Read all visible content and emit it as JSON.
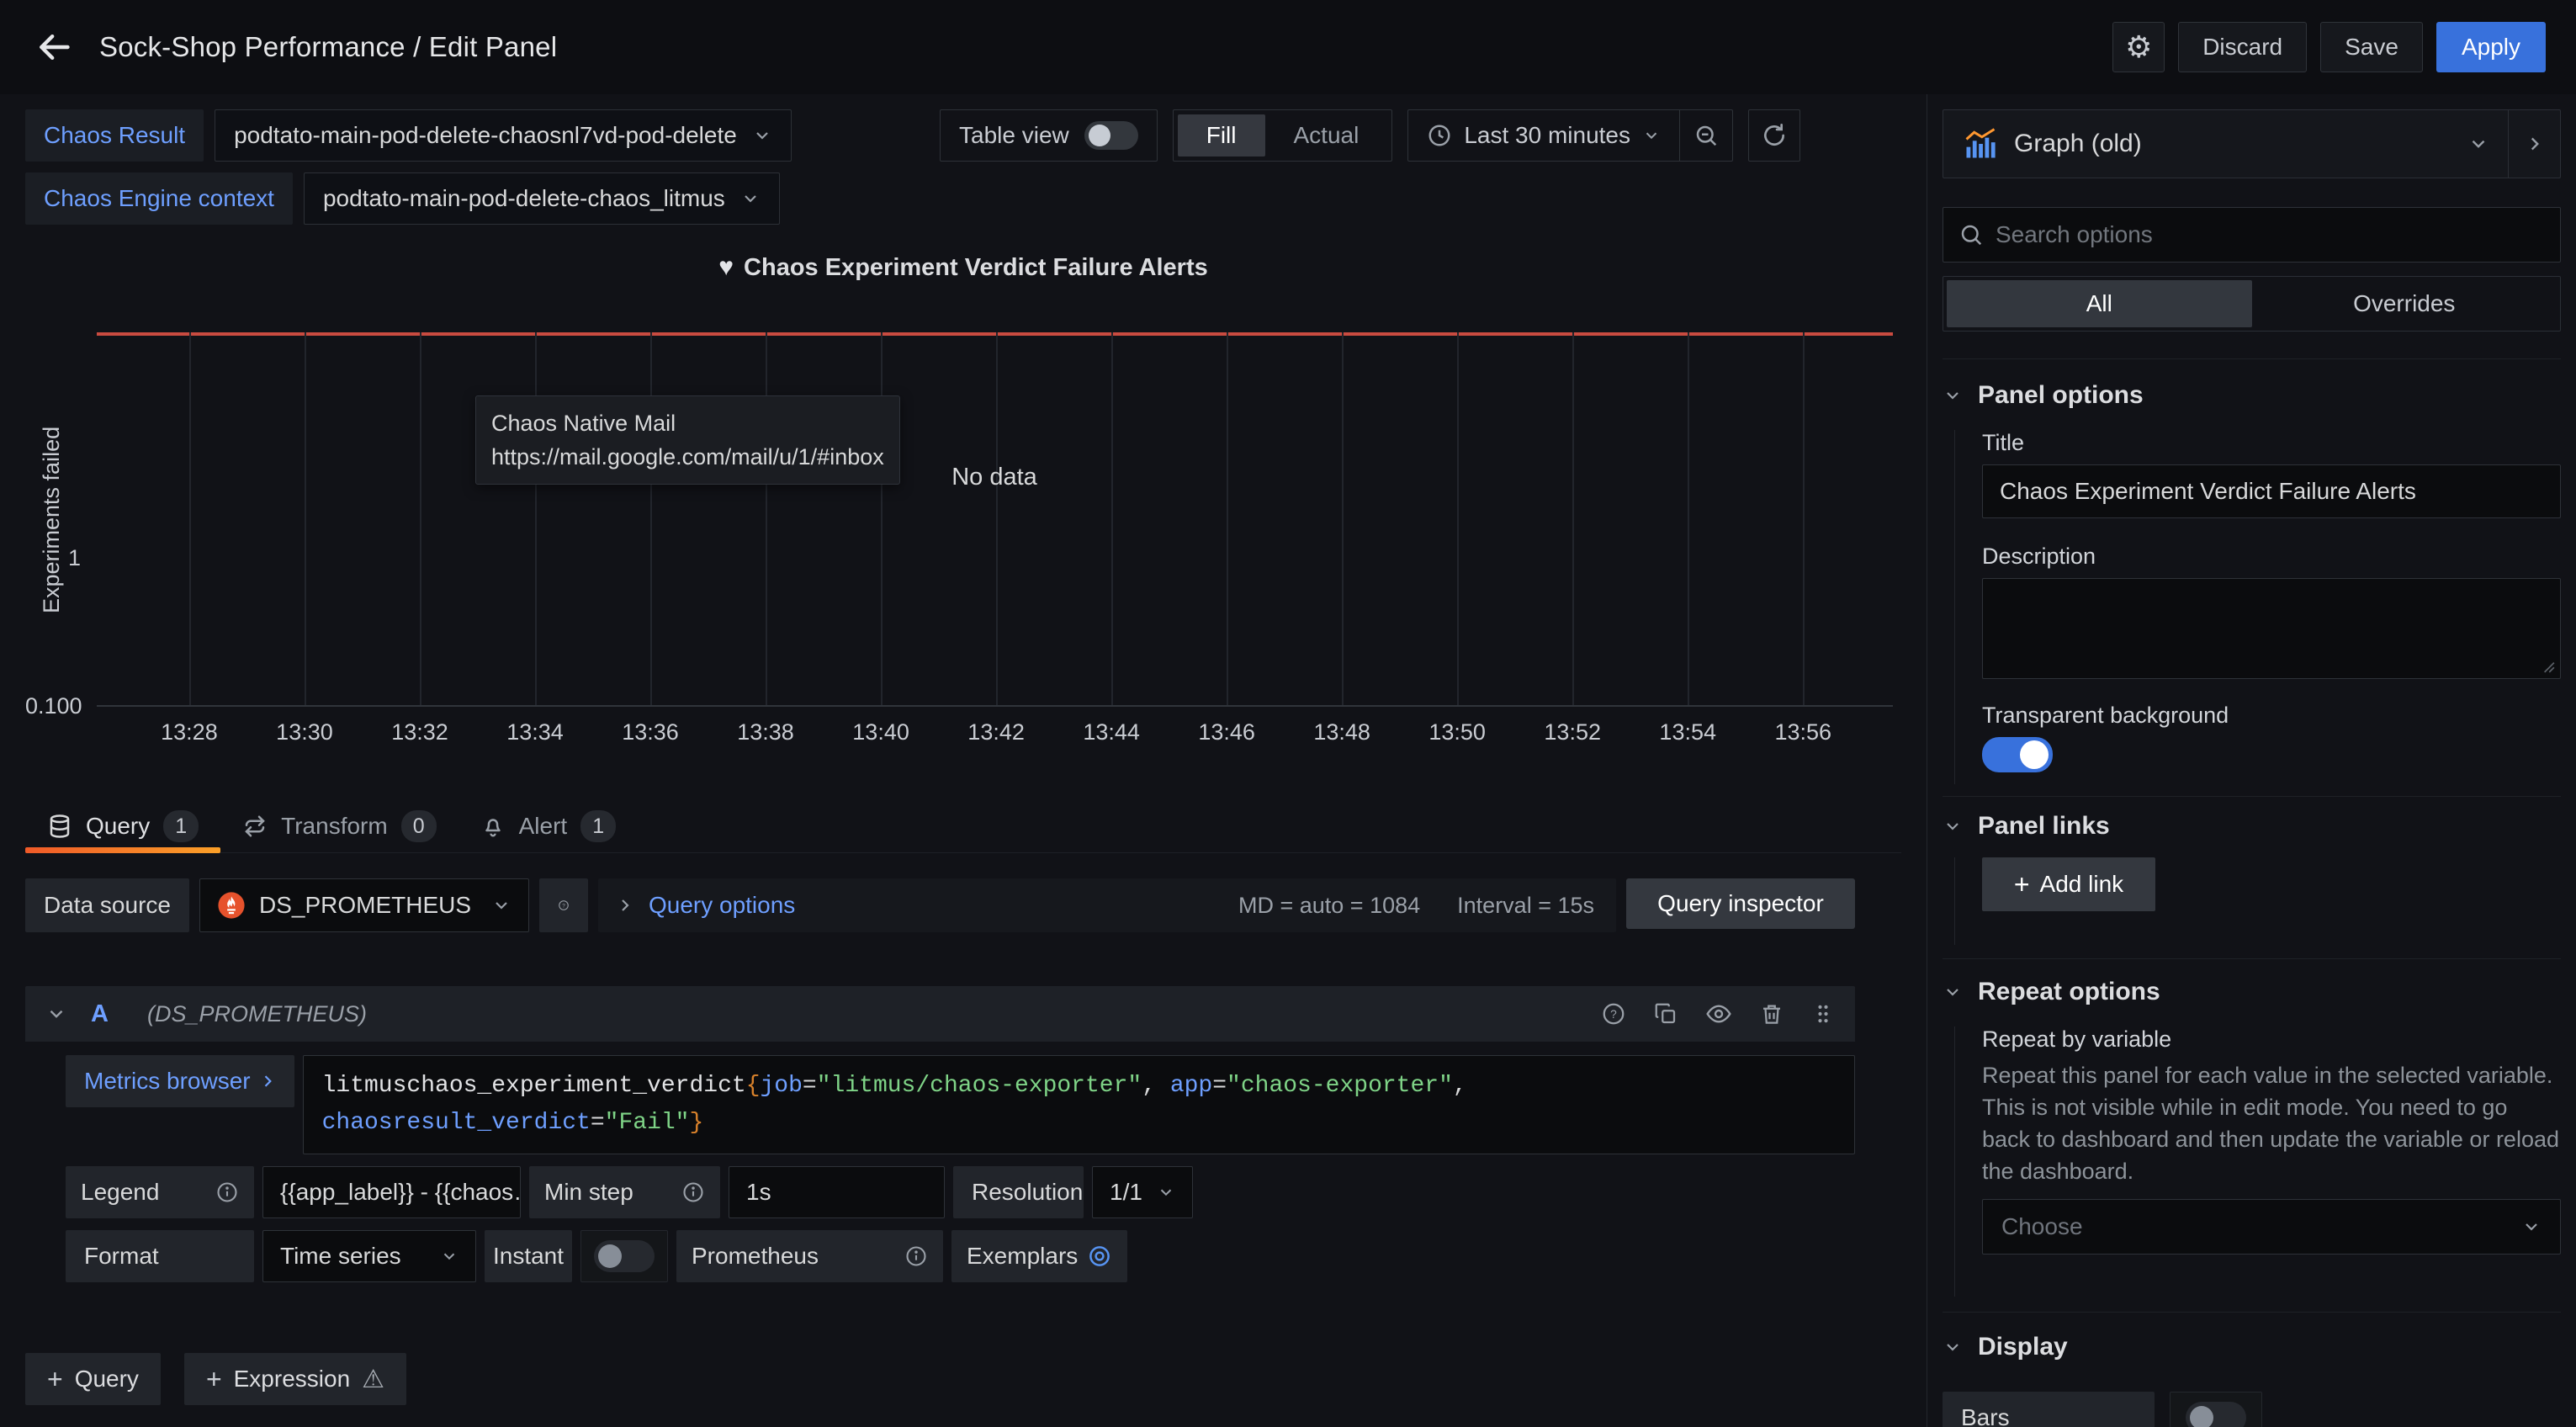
{
  "nav": {
    "title": "Sock-Shop Performance / Edit Panel",
    "discard": "Discard",
    "save": "Save",
    "apply": "Apply"
  },
  "variables": [
    {
      "label": "Chaos Result",
      "value": "podtato-main-pod-delete-chaosnl7vd-pod-delete"
    },
    {
      "label": "Chaos Engine context",
      "value": "podtato-main-pod-delete-chaos_litmus"
    }
  ],
  "view_controls": {
    "table_view": "Table view",
    "fill": "Fill",
    "actual": "Actual",
    "time_range": "Last 30 minutes"
  },
  "chart_data": {
    "type": "line",
    "title": "Chaos Experiment Verdict Failure Alerts",
    "ylabel": "Experiments failed",
    "yscale": "log",
    "ylim": [
      0.1,
      1
    ],
    "y_ticks": [
      "1",
      "0.100"
    ],
    "x_ticks": [
      "13:28",
      "13:30",
      "13:32",
      "13:34",
      "13:36",
      "13:38",
      "13:40",
      "13:42",
      "13:44",
      "13:46",
      "13:48",
      "13:50",
      "13:52",
      "13:54",
      "13:56"
    ],
    "series": [],
    "no_data": "No data",
    "threshold": {
      "y": 1,
      "color": "#c94b40"
    },
    "grid": true,
    "tooltip": {
      "title": "Chaos Native Mail",
      "url": "https://mail.google.com/mail/u/1/#inbox"
    }
  },
  "tabs": [
    {
      "label": "Query",
      "count": "1"
    },
    {
      "label": "Transform",
      "count": "0"
    },
    {
      "label": "Alert",
      "count": "1"
    }
  ],
  "datasource_row": {
    "label": "Data source",
    "name": "DS_PROMETHEUS",
    "query_options": "Query options",
    "max_data_points": "MD = auto = 1084",
    "interval": "Interval = 15s",
    "inspector": "Query inspector"
  },
  "query": {
    "ref_id": "A",
    "datasource": "(DS_PROMETHEUS)",
    "metrics_browser": "Metrics browser",
    "expr_tokens": [
      {
        "text": "litmuschaos_experiment_verdict",
        "type": "metric"
      },
      {
        "text": "{",
        "type": "brace"
      },
      {
        "text": "job",
        "type": "label"
      },
      {
        "text": "=",
        "type": "punct"
      },
      {
        "text": "\"litmus/chaos-exporter\"",
        "type": "string"
      },
      {
        "text": ", ",
        "type": "punct"
      },
      {
        "text": "app",
        "type": "label"
      },
      {
        "text": "=",
        "type": "punct"
      },
      {
        "text": "\"chaos-exporter\"",
        "type": "string"
      },
      {
        "text": ",",
        "type": "punct"
      },
      {
        "type": "break"
      },
      {
        "text": "chaosresult_verdict",
        "type": "label"
      },
      {
        "text": "=",
        "type": "punct"
      },
      {
        "text": "\"Fail\"",
        "type": "string"
      },
      {
        "text": "}",
        "type": "brace"
      }
    ],
    "legend_label": "Legend",
    "legend_value": "{{app_label}} - {{chaos…",
    "min_step_label": "Min step",
    "min_step_value": "1s",
    "resolution_label": "Resolution",
    "resolution_value": "1/1",
    "format_label": "Format",
    "format_value": "Time series",
    "instant_label": "Instant",
    "prometheus_label": "Prometheus",
    "exemplars_label": "Exemplars"
  },
  "editor_actions": {
    "add_query": "Query",
    "add_expression": "Expression"
  },
  "options_pane": {
    "visualization": "Graph (old)",
    "search_placeholder": "Search options",
    "tab_all": "All",
    "tab_overrides": "Overrides",
    "panel_options": {
      "heading": "Panel options",
      "title_label": "Title",
      "title_value": "Chaos Experiment Verdict Failure Alerts",
      "description_label": "Description",
      "transparent_label": "Transparent background"
    },
    "panel_links": {
      "heading": "Panel links",
      "add_link": "Add link"
    },
    "repeat_options": {
      "heading": "Repeat options",
      "label": "Repeat by variable",
      "description": "Repeat this panel for each value in the selected variable. This is not visible while in edit mode. You need to go back to dashboard and then update the variable or reload the dashboard.",
      "placeholder": "Choose"
    },
    "display": {
      "heading": "Display",
      "bars_label": "Bars"
    }
  }
}
